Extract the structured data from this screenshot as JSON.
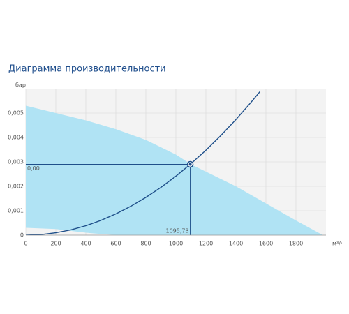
{
  "chart_data": {
    "type": "line",
    "title": "Диаграмма производительности",
    "y_label": "бар",
    "x_label": "м³/ч",
    "xlim": [
      0,
      2000
    ],
    "ylim": [
      0,
      0.006
    ],
    "xticks": [
      0,
      200,
      400,
      600,
      800,
      1000,
      1200,
      1400,
      1600,
      1800
    ],
    "yticks": [
      0,
      {
        "value": 0.001,
        "label": "0,001"
      },
      {
        "value": 0.002,
        "label": "0,002"
      },
      {
        "value": 0.003,
        "label": "0,003"
      },
      {
        "value": 0.004,
        "label": "0,004"
      },
      {
        "value": 0.005,
        "label": "0,005"
      }
    ],
    "grid": true,
    "area": {
      "color": "#b0e3f4",
      "x": [
        0,
        200,
        400,
        600,
        800,
        1000,
        1100,
        1200,
        1400,
        1600,
        1800,
        1980
      ],
      "upper": [
        0.0053,
        0.005,
        0.0047,
        0.00434,
        0.0039,
        0.0033,
        0.0029,
        0.0026,
        0.002,
        0.0013,
        0.0006,
        0
      ],
      "lower": [
        0.0003,
        0.00025,
        0.0001,
        0,
        0,
        0,
        0,
        0,
        0,
        0,
        0,
        0
      ]
    },
    "series": [
      {
        "color": "#1e4f8a",
        "x": [
          0,
          100,
          200,
          300,
          400,
          500,
          600,
          700,
          800,
          900,
          1000,
          1095.73,
          1200,
          1300,
          1400,
          1500,
          1560
        ],
        "values": [
          0,
          2.42e-05,
          9.66e-05,
          0.000217,
          0.000386,
          0.000604,
          0.00087,
          0.001184,
          0.001546,
          0.001956,
          0.002415,
          0.0029,
          0.003478,
          0.004082,
          0.004734,
          0.005435,
          0.005878
        ]
      }
    ],
    "point": {
      "x": 1095.73,
      "y": 0.0029,
      "x_label": "1095,73",
      "y_label": "0,00",
      "color": "#1e4f8a"
    }
  }
}
